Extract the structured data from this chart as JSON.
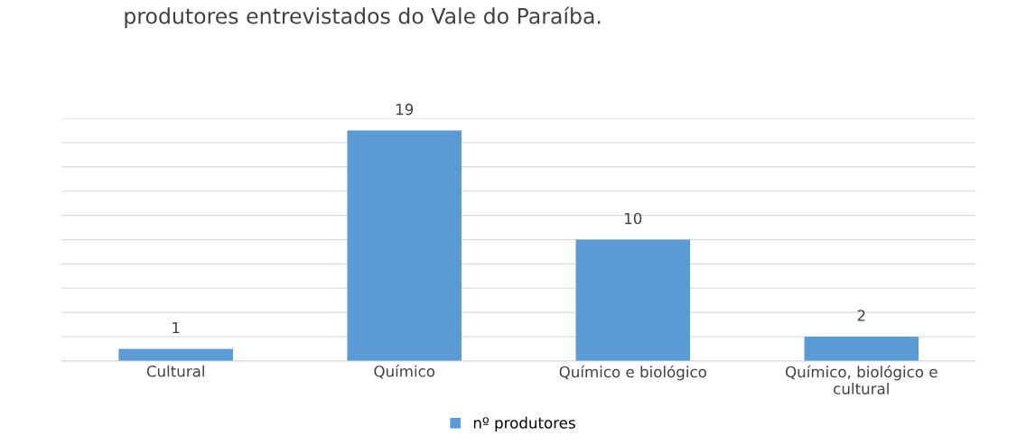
{
  "chart_data": {
    "type": "bar",
    "title": "produtores entrevistados do Vale do Paraíba.",
    "categories": [
      "Cultural",
      "Químico",
      "Químico e biológico",
      "Químico, biológico e\ncultural"
    ],
    "series": [
      {
        "name": "nº produtores",
        "color": "#5b9bd5",
        "values": [
          1,
          19,
          10,
          2
        ]
      }
    ],
    "ylim": [
      0,
      20
    ],
    "yticks": [
      {
        "value": 0,
        "label": null
      },
      {
        "value": 2,
        "label": null
      },
      {
        "value": 4,
        "label": null
      },
      {
        "value": 6,
        "label": null
      },
      {
        "value": 8,
        "label": null
      },
      {
        "value": 10,
        "label": null
      },
      {
        "value": 12,
        "label": null
      },
      {
        "value": 14,
        "label": null
      },
      {
        "value": 16,
        "label": null
      },
      {
        "value": 18,
        "label": null
      },
      {
        "value": 20,
        "label": null
      }
    ],
    "tick_labels": "x",
    "grid": "y",
    "legend": "bottom",
    "data_labels": true
  }
}
